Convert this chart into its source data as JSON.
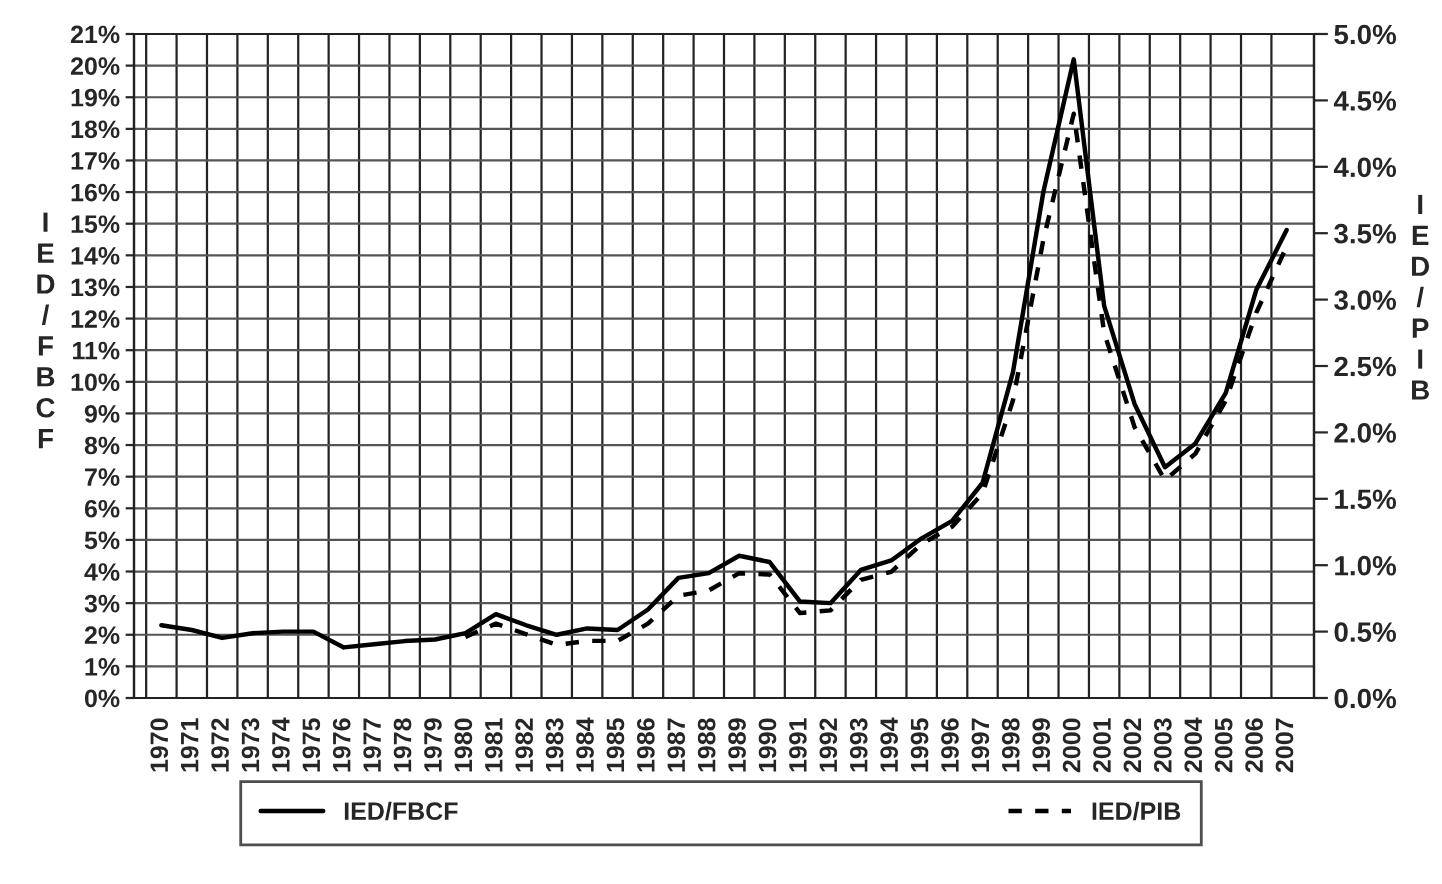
{
  "chart_data": {
    "type": "line",
    "categories": [
      "1970",
      "1971",
      "1972",
      "1973",
      "1974",
      "1975",
      "1976",
      "1977",
      "1978",
      "1979",
      "1980",
      "1981",
      "1982",
      "1983",
      "1984",
      "1985",
      "1986",
      "1987",
      "1988",
      "1989",
      "1990",
      "1991",
      "1992",
      "1993",
      "1994",
      "1995",
      "1996",
      "1997",
      "1998",
      "1999",
      "2000",
      "2001",
      "2002",
      "2003",
      "2004",
      "2005",
      "2006",
      "2007"
    ],
    "series": [
      {
        "name": "IED/FBCF",
        "color": "#000000",
        "line_style": "solid",
        "values": [
          2.3,
          2.15,
          1.9,
          2.05,
          2.1,
          2.1,
          1.6,
          1.7,
          1.8,
          1.85,
          2.05,
          2.65,
          2.3,
          2.0,
          2.2,
          2.15,
          2.8,
          3.8,
          3.95,
          4.5,
          4.3,
          3.05,
          3.0,
          4.05,
          4.35,
          5.05,
          5.6,
          6.8,
          10.3,
          16.0,
          20.2,
          12.4,
          9.3,
          7.3,
          8.05,
          9.65,
          12.9,
          14.8
        ]
      },
      {
        "name": "IED/PIB",
        "color": "#000000",
        "line_style": "dashed",
        "axis": "y2",
        "values": [
          null,
          null,
          null,
          null,
          null,
          null,
          null,
          null,
          null,
          null,
          0.46,
          0.56,
          0.48,
          0.4,
          0.43,
          0.43,
          0.56,
          0.77,
          0.81,
          0.94,
          0.93,
          0.64,
          0.66,
          0.89,
          0.95,
          1.16,
          1.29,
          1.54,
          2.24,
          3.45,
          4.4,
          2.75,
          2.04,
          1.64,
          1.84,
          2.24,
          2.9,
          3.4
        ]
      }
    ],
    "ylabel": "IED/FBCF",
    "y2label": "IED/PIB",
    "ylim": [
      0,
      21
    ],
    "yticks": [
      {
        "value": 0,
        "label": "0%"
      },
      {
        "value": 1,
        "label": "1%"
      },
      {
        "value": 2,
        "label": "2%"
      },
      {
        "value": 3,
        "label": "3%"
      },
      {
        "value": 4,
        "label": "4%"
      },
      {
        "value": 5,
        "label": "5%"
      },
      {
        "value": 6,
        "label": "6%"
      },
      {
        "value": 7,
        "label": "7%"
      },
      {
        "value": 8,
        "label": "8%"
      },
      {
        "value": 9,
        "label": "9%"
      },
      {
        "value": 10,
        "label": "10%"
      },
      {
        "value": 11,
        "label": "11%"
      },
      {
        "value": 12,
        "label": "12%"
      },
      {
        "value": 13,
        "label": "13%"
      },
      {
        "value": 14,
        "label": "14%"
      },
      {
        "value": 15,
        "label": "15%"
      },
      {
        "value": 16,
        "label": "16%"
      },
      {
        "value": 17,
        "label": "17%"
      },
      {
        "value": 18,
        "label": "18%"
      },
      {
        "value": 19,
        "label": "19%"
      },
      {
        "value": 20,
        "label": "20%"
      },
      {
        "value": 21,
        "label": "21%"
      }
    ],
    "y2lim": [
      0,
      5
    ],
    "y2ticks": [
      {
        "value": 0,
        "label": "0.0%"
      },
      {
        "value": 0.5,
        "label": "0.5%"
      },
      {
        "value": 1,
        "label": "1.0%"
      },
      {
        "value": 1.5,
        "label": "1.5%"
      },
      {
        "value": 2,
        "label": "2.0%"
      },
      {
        "value": 2.5,
        "label": "2.5%"
      },
      {
        "value": 3,
        "label": "3.0%"
      },
      {
        "value": 3.5,
        "label": "3.5%"
      },
      {
        "value": 4,
        "label": "4.0%"
      },
      {
        "value": 4.5,
        "label": "4.5%"
      },
      {
        "value": 5,
        "label": "5.0%"
      }
    ],
    "grid": true,
    "legend": "bottom",
    "marker": "none"
  }
}
